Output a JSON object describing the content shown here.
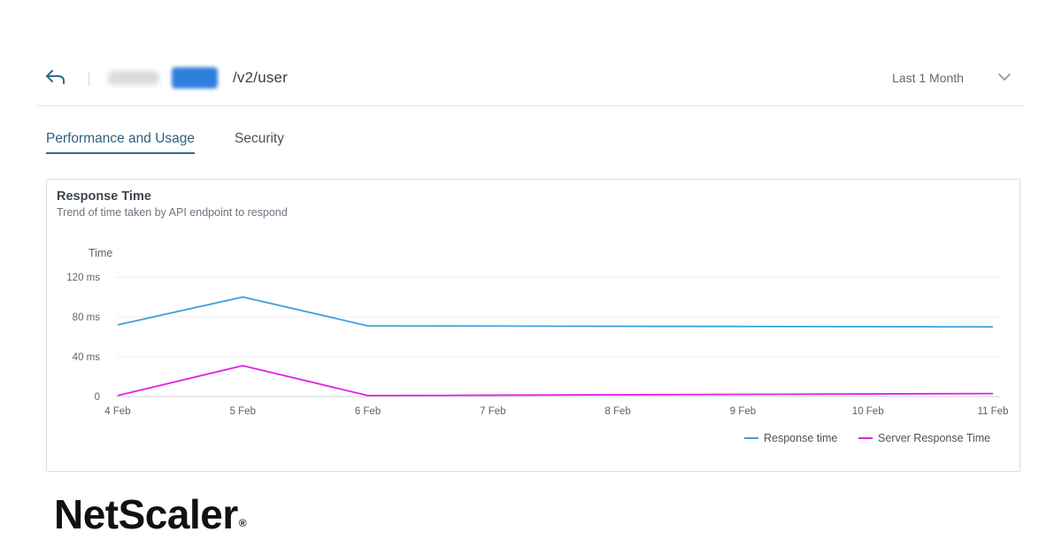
{
  "header": {
    "back_icon": "back-arrow-icon",
    "path": "/v2/user",
    "range_selected": "Last 1 Month",
    "range_icon": "chevron-down-icon"
  },
  "tabs": [
    {
      "label": "Performance and Usage",
      "active": true
    },
    {
      "label": "Security",
      "active": false
    }
  ],
  "card": {
    "title": "Response Time",
    "subtitle": "Trend of time taken by API endpoint to respond"
  },
  "colors": {
    "response_time": "#3aa0dd",
    "server_response_time": "#e21fe4",
    "active_tab": "#2e6a8a",
    "accent": "#2f7fdc"
  },
  "chart_data": {
    "type": "line",
    "ylabel": "Time",
    "ylim": [
      0,
      120
    ],
    "yticks": [
      "0",
      "40 ms",
      "80 ms",
      "120 ms"
    ],
    "ytick_values": [
      0,
      40,
      80,
      120
    ],
    "categories": [
      "4 Feb",
      "5 Feb",
      "6 Feb",
      "7 Feb",
      "8 Feb",
      "9 Feb",
      "10 Feb",
      "11 Feb"
    ],
    "series": [
      {
        "name": "Response time",
        "values": [
          72,
          100,
          71,
          null,
          null,
          null,
          null,
          70
        ],
        "color": "#3aa0dd"
      },
      {
        "name": "Server Response Time",
        "values": [
          1,
          31,
          1,
          null,
          null,
          null,
          null,
          3
        ],
        "color": "#e21fe4"
      }
    ],
    "grid": true,
    "legend": "bottom-right"
  },
  "brand": {
    "logo_text": "NetScaler",
    "registered_mark": "®"
  }
}
